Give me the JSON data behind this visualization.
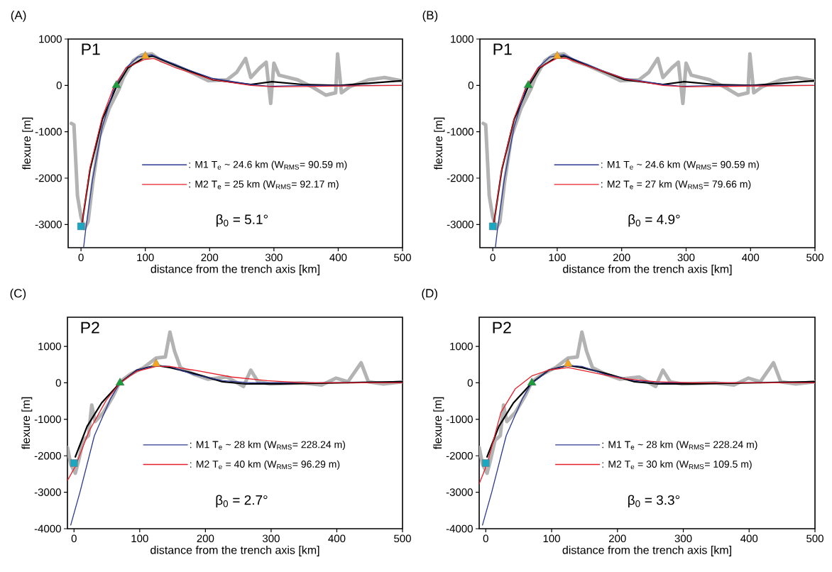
{
  "chart_data": [
    {
      "type": "line",
      "title": "(A)",
      "xlabel": "distance from the trench axis [km]",
      "ylabel": "flexure [m]",
      "xlim": [
        -20,
        500
      ],
      "ylim": [
        -3500,
        1000
      ],
      "xticks": [
        0,
        100,
        200,
        300,
        400,
        500
      ],
      "yticks": [
        -3000,
        -2000,
        -1000,
        0,
        1000
      ],
      "legend": "bottom",
      "annotations": [
        "P1",
        "β$_{0}$ = 5.1°"
      ],
      "series": [
        {
          "color": "#b3b3b3",
          "x": [
            -15,
            -11,
            -5.5,
            0,
            5.5,
            11,
            18,
            29,
            44,
            59,
            66,
            81,
            95,
            110,
            125,
            147,
            176,
            198,
            227,
            242,
            256,
            264,
            278,
            288,
            295,
            300,
            308,
            337,
            359,
            381,
            396,
            399,
            405,
            418,
            447,
            472,
            498
          ],
          "values": [
            -820,
            -850,
            -2380,
            -2840,
            -3090,
            -2940,
            -2120,
            -1100,
            -490,
            -80,
            170,
            530,
            660,
            680,
            530,
            430,
            250,
            100,
            120,
            280,
            580,
            170,
            380,
            500,
            -390,
            480,
            220,
            120,
            -30,
            -210,
            -160,
            680,
            -160,
            -30,
            120,
            170,
            100
          ]
        },
        {
          "color": "#000000",
          "x": [
            2,
            14,
            33,
            55,
            73,
            99,
            113,
            147,
            205,
            264,
            297,
            344,
            403,
            498
          ],
          "values": [
            -2940,
            -1820,
            -740,
            -30,
            380,
            610,
            630,
            430,
            120,
            20,
            80,
            20,
            0,
            100
          ]
        },
        {
          "name": ": M1 T$_{e}$ ~ 24.6 km (W$_{RMS}$= 90.59 m)",
          "color": "#2b3990",
          "x": [
            4,
            7,
            18,
            33,
            51,
            70,
            88,
            110,
            132,
            168,
            205,
            264,
            293,
            344,
            498
          ],
          "values": [
            -3500,
            -3140,
            -2020,
            -900,
            -80,
            380,
            610,
            660,
            530,
            330,
            150,
            20,
            -20,
            0,
            0
          ]
        },
        {
          "name": ": M2 T$_{e}$ = 25 km (W$_{RMS}$= 92.17 m)",
          "color": "#e8202a",
          "x": [
            2,
            14,
            33,
            51,
            70,
            99,
            113,
            147,
            205,
            264,
            300,
            498
          ],
          "values": [
            -2940,
            -1770,
            -690,
            -30,
            380,
            560,
            580,
            380,
            120,
            0,
            -30,
            0
          ]
        },
        {
          "type": "scatter",
          "marker": "square",
          "color": "#1ba7c0",
          "x": [
            0
          ],
          "values": [
            -3040
          ]
        },
        {
          "type": "scatter",
          "marker": "triangle",
          "color": "#1e9b3a",
          "x": [
            55
          ],
          "values": [
            0
          ]
        },
        {
          "type": "scatter",
          "marker": "triangle",
          "color": "#f5a623",
          "x": [
            100
          ],
          "values": [
            630
          ]
        }
      ]
    },
    {
      "type": "line",
      "title": "(B)",
      "xlabel": "distance from the trench axis [km]",
      "ylabel": "flexure [m]",
      "xlim": [
        -20,
        500
      ],
      "ylim": [
        -3500,
        1000
      ],
      "xticks": [
        0,
        100,
        200,
        300,
        400,
        500
      ],
      "yticks": [
        -3000,
        -2000,
        -1000,
        0,
        1000
      ],
      "legend": "bottom",
      "annotations": [
        "P1",
        "β$_{0}$ = 4.9°"
      ],
      "series": [
        {
          "color": "#b3b3b3",
          "x": [
            -15,
            -11,
            -5.5,
            0,
            5.5,
            11,
            18,
            29,
            44,
            59,
            66,
            81,
            95,
            110,
            125,
            147,
            176,
            198,
            227,
            242,
            256,
            264,
            278,
            288,
            295,
            300,
            308,
            337,
            359,
            381,
            396,
            399,
            405,
            418,
            447,
            472,
            498
          ],
          "values": [
            -820,
            -850,
            -2380,
            -2840,
            -3090,
            -2940,
            -2120,
            -1100,
            -490,
            -80,
            170,
            530,
            660,
            680,
            530,
            430,
            250,
            100,
            120,
            280,
            580,
            170,
            380,
            500,
            -390,
            480,
            220,
            120,
            -30,
            -210,
            -160,
            680,
            -160,
            -30,
            120,
            170,
            100
          ]
        },
        {
          "color": "#000000",
          "x": [
            2,
            14,
            33,
            55,
            73,
            99,
            113,
            147,
            205,
            264,
            297,
            344,
            403,
            498
          ],
          "values": [
            -2940,
            -1820,
            -740,
            -30,
            380,
            610,
            630,
            430,
            120,
            20,
            80,
            20,
            0,
            100
          ]
        },
        {
          "name": ": M1 T$_{e}$ ~ 24.6 km (W$_{RMS}$= 90.59 m)",
          "color": "#2b3990",
          "x": [
            4,
            7,
            18,
            33,
            51,
            70,
            88,
            110,
            132,
            168,
            205,
            264,
            293,
            344,
            498
          ],
          "values": [
            -3500,
            -3140,
            -2020,
            -900,
            -80,
            380,
            610,
            660,
            530,
            330,
            150,
            20,
            -20,
            0,
            0
          ]
        },
        {
          "name": ": M2 T$_{e}$ = 27 km (W$_{RMS}$= 79.66 m)",
          "color": "#e8202a",
          "x": [
            2,
            14,
            33,
            51,
            70,
            99,
            113,
            147,
            205,
            264,
            300,
            498
          ],
          "values": [
            -2940,
            -1800,
            -720,
            -50,
            370,
            580,
            590,
            420,
            140,
            0,
            -30,
            0
          ]
        },
        {
          "type": "scatter",
          "marker": "square",
          "color": "#1ba7c0",
          "x": [
            0
          ],
          "values": [
            -3040
          ]
        },
        {
          "type": "scatter",
          "marker": "triangle",
          "color": "#1e9b3a",
          "x": [
            55
          ],
          "values": [
            0
          ]
        },
        {
          "type": "scatter",
          "marker": "triangle",
          "color": "#f5a623",
          "x": [
            100
          ],
          "values": [
            630
          ]
        }
      ]
    },
    {
      "type": "line",
      "title": "(C)",
      "xlabel": "distance from the trench axis [km]",
      "ylabel": "flexure [m]",
      "xlim": [
        -10,
        500
      ],
      "ylim": [
        -4000,
        1800
      ],
      "xticks": [
        0,
        100,
        200,
        300,
        400,
        500
      ],
      "yticks": [
        -4000,
        -3000,
        -2000,
        -1000,
        0,
        1000
      ],
      "legend": "bottom",
      "annotations": [
        "P2",
        "β$_{0}$ = 2.7°"
      ],
      "series": [
        {
          "color": "#b3b3b3",
          "x": [
            -10,
            -5,
            2,
            7,
            14,
            22,
            27,
            32,
            45,
            60,
            70,
            85,
            106,
            125,
            139,
            146,
            153,
            162,
            183,
            204,
            233,
            258,
            269,
            280,
            298,
            348,
            377,
            399,
            417,
            437,
            448,
            471,
            500
          ],
          "values": [
            -1770,
            -2230,
            -2480,
            -2130,
            -1580,
            -1450,
            -610,
            -1060,
            -810,
            -350,
            30,
            230,
            420,
            680,
            710,
            1390,
            870,
            420,
            230,
            100,
            160,
            -100,
            350,
            30,
            -30,
            0,
            -60,
            130,
            30,
            550,
            30,
            -30,
            30
          ]
        },
        {
          "color": "#000000",
          "x": [
            2,
            20,
            42,
            70,
            96,
            125,
            146,
            182,
            226,
            262,
            312,
            500
          ],
          "values": [
            -2030,
            -1190,
            -550,
            0,
            350,
            480,
            420,
            260,
            30,
            -30,
            -30,
            30
          ]
        },
        {
          "name": ": M1 T$_{e}$ ~ 28 km (W$_{RMS}$= 228.24 m)",
          "color": "#2b3990",
          "x": [
            -5,
            9,
            31,
            56,
            70,
            96,
            125,
            146,
            182,
            226,
            269,
            500
          ],
          "values": [
            -3900,
            -3000,
            -1450,
            -420,
            0,
            350,
            480,
            450,
            230,
            60,
            0,
            0
          ]
        },
        {
          "name": ": M2 T$_{e}$ = 40 km (W$_{RMS}$= 96.29 m)",
          "color": "#e8202a",
          "x": [
            -10,
            2,
            23,
            49,
            70,
            96,
            125,
            146,
            182,
            240,
            294,
            348,
            500
          ],
          "values": [
            -2680,
            -2290,
            -1320,
            -480,
            0,
            320,
            450,
            450,
            350,
            160,
            60,
            0,
            0
          ]
        },
        {
          "type": "scatter",
          "marker": "square",
          "color": "#1ba7c0",
          "x": [
            0
          ],
          "values": [
            -2200
          ]
        },
        {
          "type": "scatter",
          "marker": "triangle",
          "color": "#1e9b3a",
          "x": [
            70
          ],
          "values": [
            0
          ]
        },
        {
          "type": "scatter",
          "marker": "triangle",
          "color": "#f5a623",
          "x": [
            125
          ],
          "values": [
            520
          ]
        }
      ]
    },
    {
      "type": "line",
      "title": "(D)",
      "xlabel": "distance from the trench axis [km]",
      "ylabel": "flexure [m]",
      "xlim": [
        -10,
        500
      ],
      "ylim": [
        -4000,
        1800
      ],
      "xticks": [
        0,
        100,
        200,
        300,
        400,
        500
      ],
      "yticks": [
        -4000,
        -3000,
        -2000,
        -1000,
        0,
        1000
      ],
      "legend": "bottom",
      "annotations": [
        "P2",
        "β$_{0}$ = 3.3°"
      ],
      "series": [
        {
          "color": "#b3b3b3",
          "x": [
            -10,
            -5,
            2,
            7,
            14,
            22,
            27,
            32,
            45,
            60,
            70,
            85,
            106,
            125,
            139,
            146,
            153,
            162,
            183,
            204,
            233,
            258,
            269,
            280,
            298,
            348,
            377,
            399,
            417,
            437,
            448,
            471,
            500
          ],
          "values": [
            -1770,
            -2230,
            -2480,
            -2130,
            -1580,
            -1450,
            -610,
            -1060,
            -810,
            -350,
            30,
            230,
            420,
            680,
            710,
            1390,
            870,
            420,
            230,
            100,
            160,
            -100,
            350,
            30,
            -30,
            0,
            -60,
            130,
            30,
            550,
            30,
            -30,
            30
          ]
        },
        {
          "color": "#000000",
          "x": [
            2,
            20,
            42,
            70,
            96,
            125,
            146,
            182,
            226,
            262,
            312,
            500
          ],
          "values": [
            -2030,
            -1190,
            -550,
            0,
            350,
            480,
            420,
            260,
            30,
            -30,
            -30,
            30
          ]
        },
        {
          "name": ": M1 T$_{e}$ ~ 28 km (W$_{RMS}$= 228.24 m)",
          "color": "#2b3990",
          "x": [
            -5,
            9,
            31,
            56,
            70,
            96,
            125,
            146,
            182,
            226,
            269,
            500
          ],
          "values": [
            -3900,
            -3000,
            -1450,
            -420,
            0,
            350,
            480,
            450,
            230,
            60,
            0,
            0
          ]
        },
        {
          "name": ": M2 T$_{e}$ = 30 km (W$_{RMS}$= 109.5 m)",
          "color": "#e8202a",
          "x": [
            -10,
            2,
            23,
            45,
            70,
            96,
            125,
            153,
            204,
            258,
            312,
            500
          ],
          "values": [
            -2770,
            -2230,
            -810,
            -160,
            190,
            350,
            420,
            320,
            130,
            30,
            0,
            0
          ]
        },
        {
          "type": "scatter",
          "marker": "square",
          "color": "#1ba7c0",
          "x": [
            0
          ],
          "values": [
            -2200
          ]
        },
        {
          "type": "scatter",
          "marker": "triangle",
          "color": "#1e9b3a",
          "x": [
            70
          ],
          "values": [
            0
          ]
        },
        {
          "type": "scatter",
          "marker": "triangle",
          "color": "#f5a623",
          "x": [
            125
          ],
          "values": [
            520
          ]
        }
      ]
    }
  ]
}
